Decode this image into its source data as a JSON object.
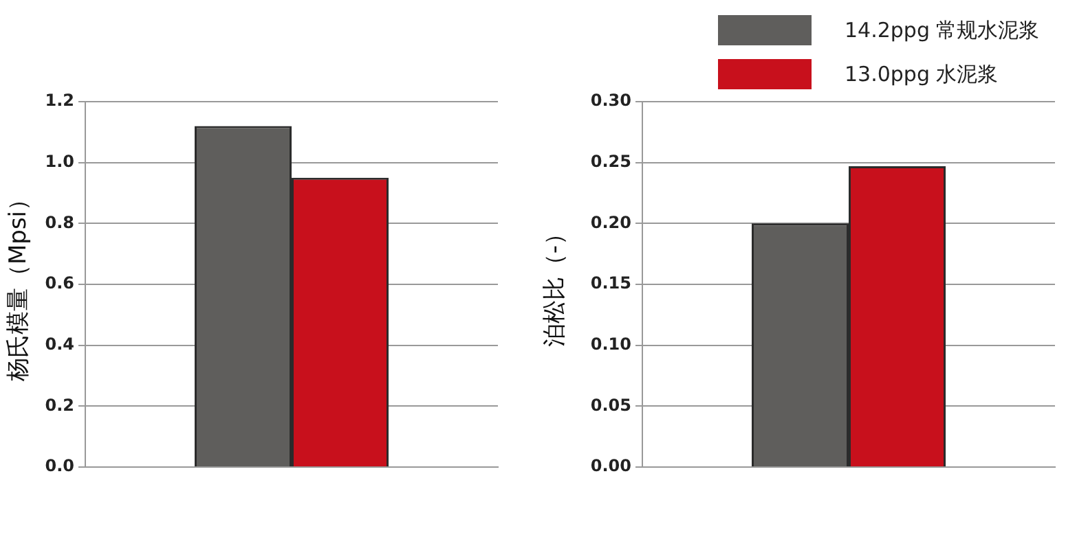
{
  "chart_data": [
    {
      "type": "bar",
      "ylabel": "杨氏模量（Mpsi）",
      "categories": [
        null
      ],
      "tick_labels": "y",
      "grid": "y",
      "legend": false,
      "ylim": [
        0,
        1.2
      ],
      "yticks": [
        {
          "value": 0,
          "label": "0.0"
        },
        0.2,
        0.4,
        0.6,
        0.8,
        {
          "value": 1,
          "label": "1.0"
        },
        1.2
      ],
      "series": [
        {
          "color": "#5f5e5c",
          "values": [
            1.12
          ]
        },
        {
          "color": "#c8101c",
          "values": [
            0.95
          ]
        }
      ]
    },
    {
      "type": "bar",
      "ylabel": "泊松比（-）",
      "categories": [
        null
      ],
      "tick_labels": "y",
      "grid": "y",
      "legend": "top right",
      "ylim": [
        0,
        0.3
      ],
      "yticks": [
        {
          "value": 0,
          "label": "0.00"
        },
        {
          "value": 0.05,
          "label": "0.05"
        },
        {
          "value": 0.1,
          "label": "0.10"
        },
        {
          "value": 0.15,
          "label": "0.15"
        },
        {
          "value": 0.2,
          "label": "0.20"
        },
        {
          "value": 0.25,
          "label": "0.25"
        },
        {
          "value": 0.3,
          "label": "0.30"
        }
      ],
      "series": [
        {
          "name": "14.2ppg 常规水泥浆",
          "color": "#5f5e5c",
          "values": [
            0.2
          ]
        },
        {
          "name": "13.0ppg 水泥浆",
          "color": "#c8101c",
          "values": [
            0.247
          ]
        }
      ]
    }
  ]
}
